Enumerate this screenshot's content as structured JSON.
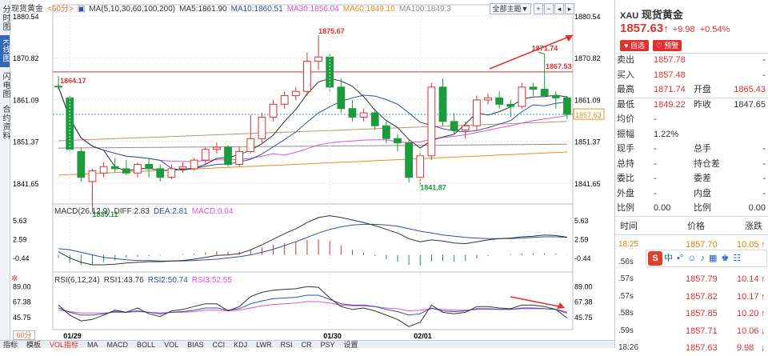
{
  "left_tabs": [
    {
      "label": "分时图",
      "active": false
    },
    {
      "label": "K线图",
      "active": true
    },
    {
      "label": "闪电图",
      "active": false
    },
    {
      "label": "合约资料",
      "active": false
    }
  ],
  "header": {
    "name": "现货黄金",
    "period": "<60分>",
    "ma_params": "MA(5,10,30,60,100,200)",
    "ma5": "MA5:1861.90",
    "ma10": "MA10:1860.51",
    "ma30": "MA30:1856.04",
    "ma60": "MA60:1849.10",
    "ma100": "MA100:1849.3",
    "theme_btn": "全部主题▼"
  },
  "colors": {
    "up": "#e03030",
    "down": "#1c9a3c",
    "ma5": "#333333",
    "ma10": "#3050a0",
    "ma30": "#e050e0",
    "ma60": "#e09020",
    "ma100": "#909090",
    "ma200": "#c09070",
    "resistance": "#e03030",
    "current": "#30a0c0"
  },
  "price_axis": {
    "labels": [
      "1880.54",
      "1870.82",
      "1861.09",
      "1851.37",
      "1841.65"
    ],
    "min": 1836.79,
    "max": 1880.54,
    "current": "1857.63",
    "resistance": "1867.53"
  },
  "annotations": {
    "high": "1875.67",
    "high2": "1871.74",
    "low1": "1835.11",
    "low2": "1841.87",
    "left_label": "1864.17"
  },
  "candles": [
    [
      1864.2,
      1866.5,
      1863.5,
      1864.0
    ],
    [
      1861.5,
      1862.0,
      1849.0,
      1849.5
    ],
    [
      1849.0,
      1850.0,
      1842.0,
      1843.0
    ],
    [
      1842.0,
      1845.0,
      1836.0,
      1844.5
    ],
    [
      1844.0,
      1846.5,
      1843.0,
      1845.5
    ],
    [
      1845.5,
      1847.5,
      1844.0,
      1845.0
    ],
    [
      1845.0,
      1847.0,
      1843.5,
      1844.0
    ],
    [
      1844.0,
      1846.5,
      1843.0,
      1846.0
    ],
    [
      1846.0,
      1847.5,
      1843.0,
      1845.0
    ],
    [
      1845.0,
      1846.0,
      1842.0,
      1843.0
    ],
    [
      1843.0,
      1846.0,
      1842.5,
      1845.0
    ],
    [
      1845.0,
      1846.5,
      1844.0,
      1845.5
    ],
    [
      1845.0,
      1847.5,
      1844.5,
      1847.0
    ],
    [
      1847.0,
      1850.0,
      1846.0,
      1849.5
    ],
    [
      1849.5,
      1851.0,
      1848.5,
      1850.0
    ],
    [
      1850.0,
      1850.5,
      1845.5,
      1846.0
    ],
    [
      1846.0,
      1850.0,
      1845.5,
      1849.0
    ],
    [
      1849.0,
      1857.5,
      1848.5,
      1852.0
    ],
    [
      1852.0,
      1858.0,
      1851.0,
      1857.0
    ],
    [
      1857.0,
      1861.0,
      1856.0,
      1860.0
    ],
    [
      1860.0,
      1863.0,
      1859.0,
      1862.0
    ],
    [
      1862.0,
      1864.0,
      1861.0,
      1863.0
    ],
    [
      1863.0,
      1872.0,
      1862.0,
      1870.0
    ],
    [
      1870.0,
      1875.67,
      1868.0,
      1871.0
    ],
    [
      1871.0,
      1872.0,
      1863.0,
      1864.0
    ],
    [
      1864.0,
      1866.0,
      1858.0,
      1859.0
    ],
    [
      1859.0,
      1861.0,
      1856.0,
      1857.0
    ],
    [
      1857.0,
      1859.0,
      1856.0,
      1858.0
    ],
    [
      1858.0,
      1859.0,
      1854.0,
      1855.0
    ],
    [
      1855.0,
      1856.0,
      1851.0,
      1852.0
    ],
    [
      1852.0,
      1853.0,
      1849.0,
      1851.0
    ],
    [
      1851.0,
      1852.0,
      1841.87,
      1843.0
    ],
    [
      1843.0,
      1849.0,
      1841.87,
      1848.0
    ],
    [
      1848.0,
      1865.0,
      1847.0,
      1864.0
    ],
    [
      1864.0,
      1866.0,
      1855.0,
      1856.0
    ],
    [
      1856.0,
      1858.0,
      1853.0,
      1854.0
    ],
    [
      1854.0,
      1856.0,
      1852.0,
      1855.0
    ],
    [
      1855.0,
      1862.0,
      1854.0,
      1861.0
    ],
    [
      1861.0,
      1862.5,
      1860.0,
      1861.5
    ],
    [
      1861.5,
      1863.0,
      1859.0,
      1860.0
    ],
    [
      1860.0,
      1861.0,
      1857.0,
      1859.5
    ],
    [
      1859.5,
      1865.0,
      1859.0,
      1864.0
    ],
    [
      1864.0,
      1865.0,
      1862.0,
      1863.5
    ],
    [
      1863.5,
      1871.74,
      1862.0,
      1862.0
    ],
    [
      1862.0,
      1863.0,
      1859.0,
      1861.5
    ],
    [
      1861.5,
      1862.0,
      1856.5,
      1857.63
    ]
  ],
  "macd": {
    "label": "MACD(26,12,9)",
    "diff": "DIFF:2.83",
    "dea": "DEA:2.81",
    "macd": "MACD:0.04",
    "axis": [
      "5.63",
      "2.59",
      "-0.44"
    ],
    "min": -2.5,
    "max": 6.5,
    "diff_values": [
      0.5,
      -0.5,
      -1.2,
      -1.6,
      -1.6,
      -1.5,
      -1.3,
      -1.2,
      -1.1,
      -1.1,
      -1.0,
      -0.9,
      -0.7,
      -0.4,
      -0.1,
      0.0,
      0.2,
      0.8,
      1.6,
      2.5,
      3.4,
      4.2,
      5.2,
      6.0,
      6.3,
      6.0,
      5.6,
      5.2,
      4.7,
      4.1,
      3.5,
      2.6,
      2.1,
      2.4,
      2.2,
      1.9,
      1.8,
      2.1,
      2.4,
      2.6,
      2.7,
      2.9,
      3.0,
      3.2,
      3.1,
      2.83
    ],
    "dea_values": [
      1.0,
      0.8,
      0.4,
      0.0,
      -0.4,
      -0.6,
      -0.8,
      -0.9,
      -0.9,
      -1.0,
      -1.0,
      -1.0,
      -0.9,
      -0.8,
      -0.7,
      -0.5,
      -0.3,
      0.0,
      0.4,
      0.9,
      1.5,
      2.1,
      2.8,
      3.5,
      4.1,
      4.5,
      4.8,
      4.9,
      4.9,
      4.8,
      4.6,
      4.2,
      3.8,
      3.5,
      3.2,
      3.0,
      2.8,
      2.7,
      2.6,
      2.6,
      2.6,
      2.7,
      2.8,
      2.9,
      2.9,
      2.81
    ],
    "hist_values": [
      -0.5,
      -1.3,
      -1.6,
      -1.6,
      -1.2,
      -0.9,
      -0.5,
      -0.3,
      -0.2,
      -0.1,
      0.0,
      0.1,
      0.2,
      0.4,
      0.6,
      0.5,
      0.5,
      0.8,
      1.2,
      1.6,
      1.9,
      2.1,
      2.4,
      2.5,
      2.2,
      1.5,
      0.8,
      0.3,
      -0.2,
      -0.7,
      -1.1,
      -1.6,
      -1.7,
      -1.1,
      -1.0,
      -1.1,
      -1.0,
      -0.6,
      -0.2,
      0.0,
      0.1,
      0.2,
      0.2,
      0.3,
      0.2,
      0.04
    ]
  },
  "rsi": {
    "label": "RSI(6,12,24)",
    "rsi1": "RSI1:43.76",
    "rsi2": "RSI2:50.74",
    "rsi3": "RSI3:52.55",
    "axis": [
      "89.00",
      "67.38",
      "45.75"
    ],
    "min": 30,
    "max": 95,
    "r1": [
      62,
      48,
      40,
      42,
      48,
      55,
      52,
      58,
      50,
      46,
      54,
      56,
      60,
      64,
      64,
      54,
      60,
      74,
      80,
      83,
      84,
      85,
      88,
      87,
      72,
      60,
      56,
      58,
      54,
      48,
      42,
      32,
      38,
      62,
      52,
      50,
      52,
      60,
      60,
      58,
      57,
      62,
      62,
      60,
      56,
      44
    ],
    "r2": [
      58,
      52,
      48,
      48,
      50,
      53,
      52,
      54,
      52,
      50,
      52,
      53,
      55,
      58,
      58,
      55,
      57,
      64,
      68,
      71,
      72,
      73,
      76,
      76,
      70,
      64,
      62,
      62,
      60,
      56,
      53,
      48,
      50,
      58,
      54,
      53,
      54,
      57,
      57,
      56,
      56,
      58,
      58,
      57,
      56,
      50.74
    ],
    "r3": [
      55,
      53,
      51,
      51,
      51,
      52,
      52,
      53,
      52,
      51,
      52,
      52,
      53,
      55,
      55,
      54,
      55,
      58,
      61,
      63,
      64,
      65,
      67,
      67,
      65,
      62,
      61,
      61,
      60,
      58,
      57,
      54,
      55,
      57,
      56,
      55,
      55,
      56,
      56,
      56,
      56,
      57,
      57,
      57,
      56,
      52.55
    ]
  },
  "x_labels": [
    {
      "text": "01/29",
      "i": 1
    },
    {
      "text": "01/30",
      "i": 24
    },
    {
      "text": "02/01",
      "i": 32
    }
  ],
  "period_box": "60分",
  "bottom_tabs": [
    "指标",
    "模板",
    "VOL指标",
    "MA",
    "MACD",
    "BOLL",
    "VOL",
    "BIAS",
    "CCI",
    "KDJ",
    "LWR",
    "RSI",
    "CR",
    "PSY",
    "设置"
  ],
  "quote": {
    "code": "XAU",
    "name": "现货黄金",
    "price": "1857.63",
    "arrow": "↑",
    "change": "+9.98",
    "pct": "+0.54%",
    "self_select": "♥ 自选",
    "alert": "♡ 预警"
  },
  "rows": [
    {
      "l": "卖出",
      "v": "1857.78",
      "v2": "-",
      "l2": "",
      "vc": "red"
    },
    {
      "l": "买入",
      "v": "1857.48",
      "v2": "-",
      "l2": "",
      "vc": "red"
    },
    {
      "l": "最高",
      "v": "1871.74",
      "l2": "开盘",
      "v2": "1865.43",
      "vc": "red",
      "v2c": "red"
    },
    {
      "l": "最低",
      "v": "1849.22",
      "l2": "昨收",
      "v2": "1847.65",
      "vc": "red",
      "v2c": "dark"
    },
    {
      "l": "均价",
      "v": "-",
      "l2": "",
      "v2": "",
      "vc": "dark"
    },
    {
      "l": "振幅",
      "v": "1.22%",
      "l2": "",
      "v2": "",
      "vc": "dark"
    },
    {
      "l": "现手",
      "v": "-",
      "l2": "总手",
      "v2": "-",
      "vc": "dark",
      "v2c": "dark"
    },
    {
      "l": "总持",
      "v": "-",
      "l2": "持仓差",
      "v2": "-",
      "vc": "dark",
      "v2c": "dark"
    },
    {
      "l": "委比",
      "v": "-",
      "l2": "委差",
      "v2": "-",
      "vc": "dark",
      "v2c": "dark"
    },
    {
      "l": "外盘",
      "v": "-",
      "l2": "内盘",
      "v2": "-",
      "vc": "dark",
      "v2c": "dark"
    },
    {
      "l": "比例",
      "v": "0.00",
      "l2": "比例",
      "v2": "0.00",
      "vc": "dark",
      "v2c": "dark"
    }
  ],
  "ticks_header": {
    "time": "时间",
    "price": "价格",
    "change": "涨跌"
  },
  "ticks": [
    {
      "time": "18:25",
      "price": "1857.70",
      "change": "10.05",
      "arrow": "↑",
      "color": "#e08010"
    },
    {
      "time": ".56s",
      "price": "",
      "change": "",
      "arrow": "",
      "color": "#333"
    },
    {
      "time": ".57s",
      "price": "1857.79",
      "change": "10.14",
      "arrow": "↑",
      "color": "#e03030"
    },
    {
      "time": ".57s",
      "price": "1857.82",
      "change": "10.17",
      "arrow": "↑",
      "color": "#e03030"
    },
    {
      "time": ".58s",
      "price": "1857.85",
      "change": "10.20",
      "arrow": "↑",
      "color": "#e03030"
    },
    {
      "time": ".59s",
      "price": "1857.71",
      "change": "10.06",
      "arrow": "↓",
      "color": "#e03030"
    },
    {
      "time": "18:26",
      "price": "1857.63",
      "change": "9.98",
      "arrow": "↓",
      "color": "#e03030"
    }
  ]
}
